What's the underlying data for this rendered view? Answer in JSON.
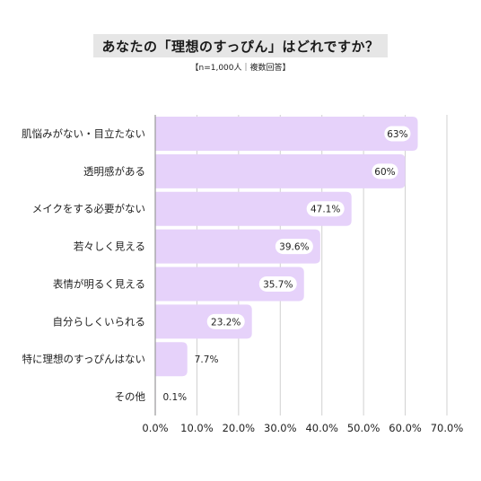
{
  "title": "あなたの「理想のすっぴん」はどれですか？",
  "subtitle": "【n=1,000人｜複数回答】",
  "colors": {
    "bar": "#e6d2fa",
    "grid": "#d0d0d0",
    "axis": "#9a9a9a",
    "label_bg": "#ffffff"
  },
  "chart_data": {
    "type": "bar",
    "orientation": "horizontal",
    "categories": [
      "肌悩みがない・目立たない",
      "透明感がある",
      "メイクをする必要がない",
      "若々しく見える",
      "表情が明るく見える",
      "自分らしくいられる",
      "特に理想のすっぴんはない",
      "その他"
    ],
    "values": [
      63,
      60,
      47.1,
      39.6,
      35.7,
      23.2,
      7.7,
      0.1
    ],
    "value_labels": [
      "63%",
      "60%",
      "47.1%",
      "39.6%",
      "35.7%",
      "23.2%",
      "7.7%",
      "0.1%"
    ],
    "xlim": [
      0,
      70
    ],
    "xticks": [
      0,
      10,
      20,
      30,
      40,
      50,
      60,
      70
    ],
    "xtick_labels": [
      "0.0%",
      "10.0%",
      "20.0%",
      "30.0%",
      "40.0%",
      "50.0%",
      "60.0%",
      "70.0%"
    ],
    "grid": true,
    "title": "あなたの「理想のすっぴん」はどれですか？",
    "xlabel": "",
    "ylabel": ""
  }
}
